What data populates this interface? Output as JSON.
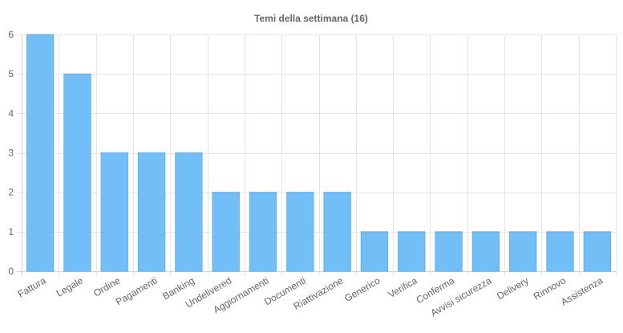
{
  "chart_data": {
    "type": "bar",
    "title": "Temi della settimana (16)",
    "xlabel": "",
    "ylabel": "",
    "categories": [
      "Fattura",
      "Legale",
      "Ordine",
      "Pagamenti",
      "Banking",
      "Undelivered",
      "Aggiornamenti",
      "Documenti",
      "Riattivazione",
      "Generico",
      "Verifica",
      "Conferma",
      "Avvisi sicurezza",
      "Delivery",
      "Rinnovo",
      "Assistenza"
    ],
    "values": [
      6,
      5,
      3,
      3,
      3,
      2,
      2,
      2,
      2,
      1,
      1,
      1,
      1,
      1,
      1,
      1
    ],
    "ylim": [
      0,
      6
    ],
    "yticks": [
      0,
      1,
      2,
      3,
      4,
      5,
      6
    ],
    "grid": true,
    "legend": "none",
    "bar_color": "#72bff7",
    "bar_border_color": "#5eb0ee"
  }
}
